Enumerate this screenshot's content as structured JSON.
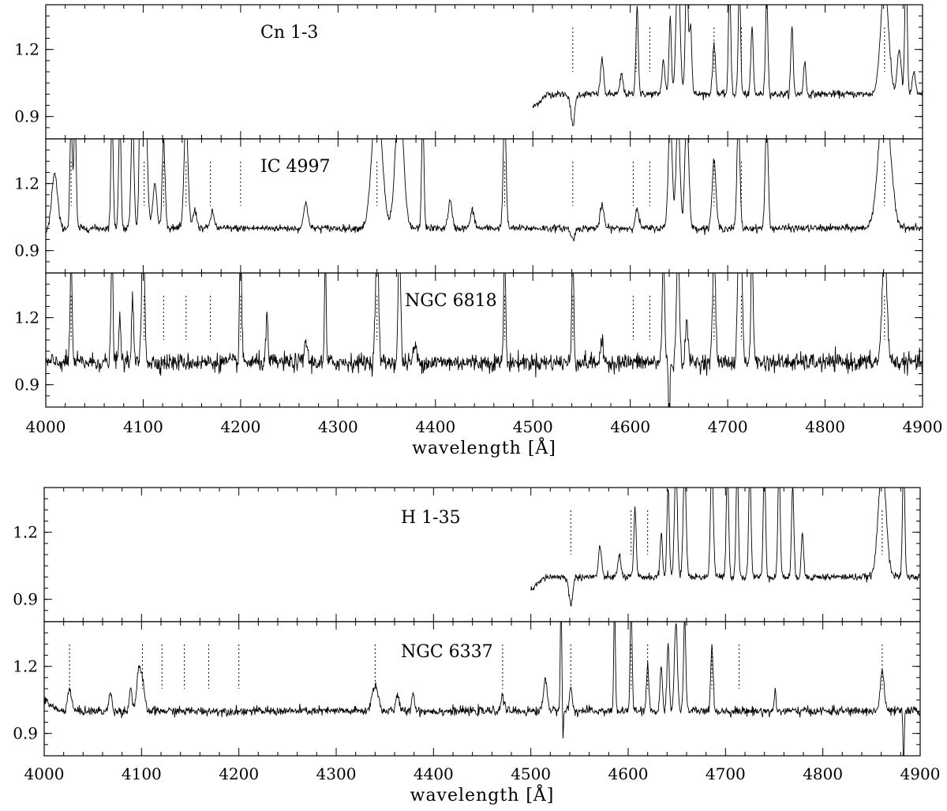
{
  "chart_data": [
    {
      "type": "line",
      "figure": "upper",
      "xlabel": "wavelength [Å]",
      "xlim": [
        4000,
        4900
      ],
      "x_ticks": [
        4000,
        4100,
        4200,
        4300,
        4400,
        4500,
        4600,
        4700,
        4800,
        4900
      ],
      "panels": [
        {
          "label": "Cn 1-3",
          "ylim": [
            0.8,
            1.4
          ],
          "y_ticks": [
            0.9,
            1.2
          ],
          "marker_lines": [
            4541,
            4606,
            4620,
            4686,
            4714,
            4861
          ],
          "series": [
            {
              "x_range": [
                4500,
                4900
              ],
              "continuum": 1.0,
              "start_value": 0.94,
              "noise": 0.008,
              "features": [
                [
                  4541,
                  -0.14,
                  2
                ],
                [
                  4571,
                  0.16,
                  1.5
                ],
                [
                  4591,
                  0.09,
                  1.5
                ],
                [
                  4607,
                  0.4,
                  1.2
                ],
                [
                  4634,
                  0.15,
                  1.5
                ],
                [
                  4641,
                  0.35,
                  1.2
                ],
                [
                  4649,
                  0.6,
                  2
                ],
                [
                  4658,
                  0.55,
                  1.5
                ],
                [
                  4662,
                  0.3,
                  1.2
                ],
                [
                  4686,
                  0.22,
                  1.5
                ],
                [
                  4702,
                  0.5,
                  1.2
                ],
                [
                  4712,
                  0.5,
                  1.2
                ],
                [
                  4725,
                  0.3,
                  1.2
                ],
                [
                  4740,
                  0.45,
                  1.2
                ],
                [
                  4766,
                  0.3,
                  1.2
                ],
                [
                  4779,
                  0.15,
                  1.2
                ],
                [
                  4861,
                  0.5,
                  4
                ],
                [
                  4876,
                  0.2,
                  2
                ],
                [
                  4883,
                  0.6,
                  1.2
                ],
                [
                  4891,
                  0.1,
                  1.5
                ]
              ]
            }
          ]
        },
        {
          "label": "IC 4997",
          "ylim": [
            0.8,
            1.4
          ],
          "y_ticks": [
            0.9,
            1.2
          ],
          "marker_lines": [
            4026,
            4101,
            4121,
            4144,
            4169,
            4200,
            4340,
            4471,
            4541,
            4603,
            4620,
            4686,
            4714,
            4861
          ],
          "series": [
            {
              "x_range": [
                4000,
                4900
              ],
              "continuum": 1.0,
              "start_value": 0.98,
              "noise": 0.008,
              "features": [
                [
                  4009,
                  0.25,
                  3
                ],
                [
                  4026,
                  0.5,
                  1.2
                ],
                [
                  4030,
                  0.5,
                  1.2
                ],
                [
                  4068,
                  0.5,
                  1.2
                ],
                [
                  4076,
                  0.5,
                  1.2
                ],
                [
                  4089,
                  0.5,
                  1.5
                ],
                [
                  4097,
                  0.5,
                  1.2
                ],
                [
                  4101,
                  0.8,
                  2.5
                ],
                [
                  4112,
                  0.2,
                  2
                ],
                [
                  4121,
                  0.4,
                  1.5
                ],
                [
                  4144,
                  0.5,
                  2
                ],
                [
                  4153,
                  0.08,
                  2
                ],
                [
                  4171,
                  0.07,
                  2
                ],
                [
                  4267,
                  0.12,
                  2
                ],
                [
                  4340,
                  0.6,
                  5
                ],
                [
                  4363,
                  0.6,
                  4
                ],
                [
                  4387,
                  0.5,
                  1.2
                ],
                [
                  4415,
                  0.12,
                  2
                ],
                [
                  4438,
                  0.08,
                  2
                ],
                [
                  4471,
                  0.5,
                  1.5
                ],
                [
                  4541,
                  -0.05,
                  2
                ],
                [
                  4571,
                  0.1,
                  2
                ],
                [
                  4607,
                  0.08,
                  2
                ],
                [
                  4641,
                  0.5,
                  2
                ],
                [
                  4649,
                  0.5,
                  2
                ],
                [
                  4658,
                  0.5,
                  2
                ],
                [
                  4686,
                  0.3,
                  2
                ],
                [
                  4711,
                  0.5,
                  1.5
                ],
                [
                  4740,
                  0.5,
                  1.5
                ],
                [
                  4861,
                  0.6,
                  6
                ]
              ]
            }
          ]
        },
        {
          "label": "NGC 6818",
          "ylim": [
            0.8,
            1.4
          ],
          "y_ticks": [
            0.9,
            1.2
          ],
          "marker_lines": [
            4026,
            4101,
            4121,
            4144,
            4169,
            4200,
            4340,
            4471,
            4541,
            4603,
            4620,
            4686,
            4714,
            4861
          ],
          "series": [
            {
              "x_range": [
                4000,
                4900
              ],
              "continuum": 1.0,
              "start_value": 1.0,
              "noise": 0.02,
              "features": [
                [
                  4026,
                  0.5,
                  1
                ],
                [
                  4068,
                  0.5,
                  1
                ],
                [
                  4076,
                  0.2,
                  1
                ],
                [
                  4089,
                  0.3,
                  1
                ],
                [
                  4100,
                  0.6,
                  1.5
                ],
                [
                  4200,
                  0.6,
                  1
                ],
                [
                  4227,
                  0.2,
                  1
                ],
                [
                  4267,
                  0.1,
                  1.5
                ],
                [
                  4287,
                  0.5,
                  0.8
                ],
                [
                  4340,
                  0.6,
                  1.5
                ],
                [
                  4363,
                  0.6,
                  1.2
                ],
                [
                  4379,
                  0.08,
                  1.5
                ],
                [
                  4471,
                  0.5,
                  1
                ],
                [
                  4541,
                  0.5,
                  1
                ],
                [
                  4571,
                  0.08,
                  1.5
                ],
                [
                  4634,
                  0.5,
                  1.2
                ],
                [
                  4640,
                  -0.4,
                  0.6
                ],
                [
                  4649,
                  0.5,
                  1.5
                ],
                [
                  4658,
                  0.2,
                  1.2
                ],
                [
                  4686,
                  0.5,
                  1.5
                ],
                [
                  4711,
                  0.5,
                  1.2
                ],
                [
                  4714,
                  0.5,
                  1.2
                ],
                [
                  4725,
                  0.5,
                  1.2
                ],
                [
                  4861,
                  0.5,
                  2.5
                ]
              ]
            }
          ]
        }
      ]
    },
    {
      "type": "line",
      "figure": "lower",
      "xlabel": "wavelength [Å]",
      "xlim": [
        4000,
        4900
      ],
      "x_ticks": [
        4000,
        4100,
        4200,
        4300,
        4400,
        4500,
        4600,
        4700,
        4800,
        4900
      ],
      "panels": [
        {
          "label": "H 1-35",
          "ylim": [
            0.8,
            1.4
          ],
          "y_ticks": [
            0.9,
            1.2
          ],
          "marker_lines": [
            4541,
            4603,
            4620,
            4861
          ],
          "series": [
            {
              "x_range": [
                4500,
                4900
              ],
              "continuum": 1.0,
              "start_value": 0.94,
              "noise": 0.008,
              "features": [
                [
                  4541,
                  -0.12,
                  2
                ],
                [
                  4571,
                  0.14,
                  1.5
                ],
                [
                  4591,
                  0.1,
                  1.5
                ],
                [
                  4607,
                  0.3,
                  1.2
                ],
                [
                  4634,
                  0.2,
                  1.2
                ],
                [
                  4641,
                  0.4,
                  1.2
                ],
                [
                  4649,
                  0.5,
                  1.5
                ],
                [
                  4658,
                  0.5,
                  1.5
                ],
                [
                  4686,
                  0.5,
                  1.5
                ],
                [
                  4702,
                  0.5,
                  1.2
                ],
                [
                  4712,
                  0.5,
                  1.2
                ],
                [
                  4725,
                  0.5,
                  1.2
                ],
                [
                  4740,
                  0.5,
                  1.2
                ],
                [
                  4755,
                  0.5,
                  1.2
                ],
                [
                  4769,
                  0.4,
                  1.2
                ],
                [
                  4779,
                  0.2,
                  1.2
                ],
                [
                  4861,
                  0.5,
                  4
                ],
                [
                  4883,
                  0.5,
                  1.2
                ]
              ]
            }
          ]
        },
        {
          "label": "NGC 6337",
          "ylim": [
            0.8,
            1.4
          ],
          "y_ticks": [
            0.9,
            1.2
          ],
          "marker_lines": [
            4026,
            4101,
            4121,
            4144,
            4169,
            4200,
            4340,
            4471,
            4541,
            4603,
            4620,
            4686,
            4714,
            4861
          ],
          "series": [
            {
              "x_range": [
                4000,
                4900
              ],
              "continuum": 1.0,
              "start_value": 1.05,
              "noise": 0.01,
              "features": [
                [
                  4026,
                  0.1,
                  2
                ],
                [
                  4068,
                  0.08,
                  1.5
                ],
                [
                  4089,
                  0.1,
                  1.5
                ],
                [
                  4097,
                  0.18,
                  2
                ],
                [
                  4101,
                  0.12,
                  2
                ],
                [
                  4340,
                  0.12,
                  3
                ],
                [
                  4363,
                  0.08,
                  1.5
                ],
                [
                  4379,
                  0.08,
                  1.5
                ],
                [
                  4471,
                  0.06,
                  2
                ],
                [
                  4515,
                  0.14,
                  2
                ],
                [
                  4531,
                  0.5,
                  0.8
                ],
                [
                  4533,
                  -0.12,
                  0.6
                ],
                [
                  4541,
                  0.1,
                  1.5
                ],
                [
                  4586,
                  0.5,
                  0.8
                ],
                [
                  4603,
                  0.5,
                  1
                ],
                [
                  4620,
                  0.2,
                  1.2
                ],
                [
                  4634,
                  0.2,
                  1.2
                ],
                [
                  4641,
                  0.3,
                  1.2
                ],
                [
                  4649,
                  0.4,
                  1.5
                ],
                [
                  4658,
                  0.4,
                  1.2
                ],
                [
                  4686,
                  0.3,
                  1.2
                ],
                [
                  4751,
                  0.1,
                  0.8
                ],
                [
                  4861,
                  0.18,
                  2
                ],
                [
                  4883,
                  -0.25,
                  0.6
                ]
              ]
            }
          ]
        }
      ]
    }
  ]
}
